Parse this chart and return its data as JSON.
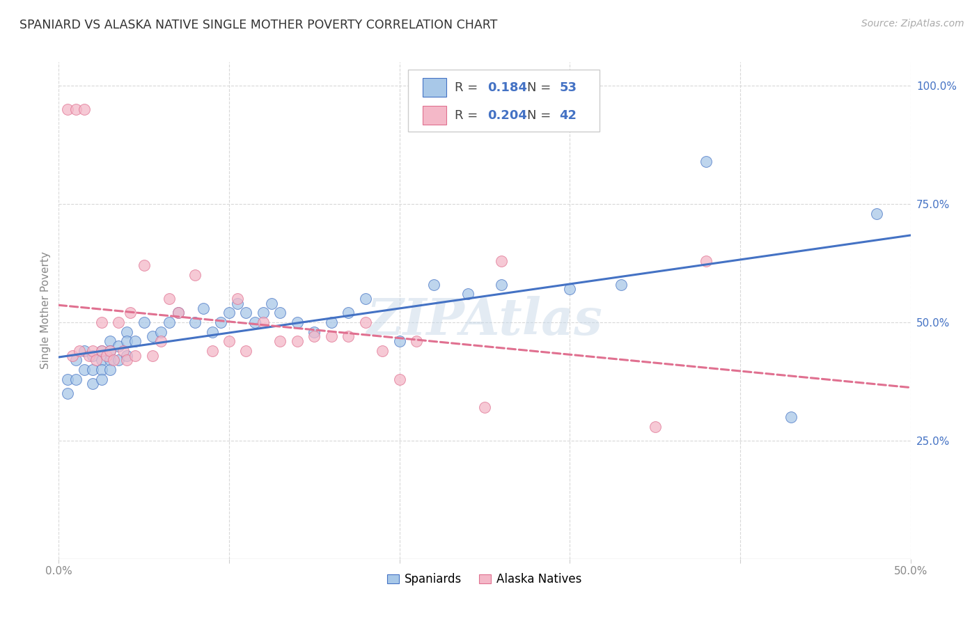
{
  "title": "SPANIARD VS ALASKA NATIVE SINGLE MOTHER POVERTY CORRELATION CHART",
  "source": "Source: ZipAtlas.com",
  "ylabel": "Single Mother Poverty",
  "xlim": [
    0.0,
    0.5
  ],
  "ylim": [
    0.0,
    1.05
  ],
  "x_tick_labels": [
    "0.0%",
    "",
    "",
    "",
    "",
    "50.0%"
  ],
  "x_tick_vals": [
    0.0,
    0.1,
    0.2,
    0.3,
    0.4,
    0.5
  ],
  "y_tick_labels_right": [
    "100.0%",
    "75.0%",
    "50.0%",
    "25.0%"
  ],
  "y_tick_vals_right": [
    1.0,
    0.75,
    0.5,
    0.25
  ],
  "legend_R_blue": "0.184",
  "legend_N_blue": "53",
  "legend_R_pink": "0.204",
  "legend_N_pink": "42",
  "blue_color": "#a8c8e8",
  "pink_color": "#f4b8c8",
  "trend_blue_color": "#4472c4",
  "trend_pink_color": "#e07090",
  "watermark": "ZIPAtlas",
  "background_color": "#ffffff",
  "grid_color": "#d8d8d8",
  "spaniards_x": [
    0.005,
    0.005,
    0.01,
    0.01,
    0.015,
    0.015,
    0.02,
    0.02,
    0.02,
    0.025,
    0.025,
    0.025,
    0.025,
    0.03,
    0.03,
    0.03,
    0.03,
    0.035,
    0.035,
    0.04,
    0.04,
    0.04,
    0.045,
    0.05,
    0.055,
    0.06,
    0.065,
    0.07,
    0.08,
    0.085,
    0.09,
    0.095,
    0.1,
    0.105,
    0.11,
    0.115,
    0.12,
    0.125,
    0.13,
    0.14,
    0.15,
    0.16,
    0.17,
    0.18,
    0.2,
    0.22,
    0.24,
    0.26,
    0.3,
    0.33,
    0.38,
    0.43,
    0.48
  ],
  "spaniards_y": [
    0.38,
    0.35,
    0.42,
    0.38,
    0.44,
    0.4,
    0.43,
    0.4,
    0.37,
    0.44,
    0.42,
    0.4,
    0.38,
    0.46,
    0.44,
    0.42,
    0.4,
    0.45,
    0.42,
    0.48,
    0.46,
    0.43,
    0.46,
    0.5,
    0.47,
    0.48,
    0.5,
    0.52,
    0.5,
    0.53,
    0.48,
    0.5,
    0.52,
    0.54,
    0.52,
    0.5,
    0.52,
    0.54,
    0.52,
    0.5,
    0.48,
    0.5,
    0.52,
    0.55,
    0.46,
    0.58,
    0.56,
    0.58,
    0.57,
    0.58,
    0.84,
    0.3,
    0.73
  ],
  "alaska_x": [
    0.005,
    0.008,
    0.01,
    0.012,
    0.015,
    0.018,
    0.02,
    0.022,
    0.025,
    0.025,
    0.028,
    0.03,
    0.032,
    0.035,
    0.038,
    0.04,
    0.042,
    0.045,
    0.05,
    0.055,
    0.06,
    0.065,
    0.07,
    0.08,
    0.09,
    0.1,
    0.105,
    0.11,
    0.12,
    0.13,
    0.14,
    0.15,
    0.16,
    0.17,
    0.18,
    0.19,
    0.2,
    0.21,
    0.25,
    0.26,
    0.35,
    0.38
  ],
  "alaska_y": [
    0.95,
    0.43,
    0.95,
    0.44,
    0.95,
    0.43,
    0.44,
    0.42,
    0.44,
    0.5,
    0.43,
    0.44,
    0.42,
    0.5,
    0.44,
    0.42,
    0.52,
    0.43,
    0.62,
    0.43,
    0.46,
    0.55,
    0.52,
    0.6,
    0.44,
    0.46,
    0.55,
    0.44,
    0.5,
    0.46,
    0.46,
    0.47,
    0.47,
    0.47,
    0.5,
    0.44,
    0.38,
    0.46,
    0.32,
    0.63,
    0.28,
    0.63
  ]
}
